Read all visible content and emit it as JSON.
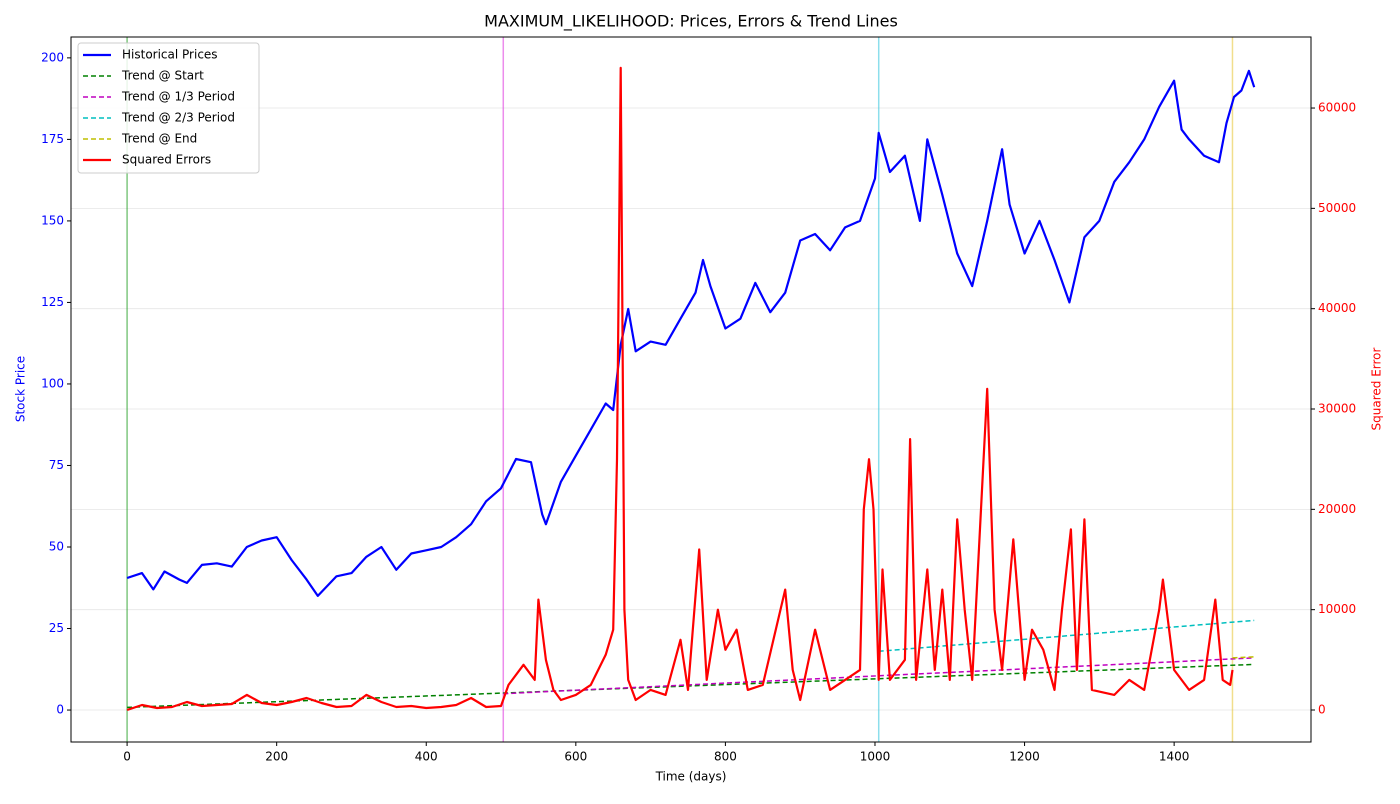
{
  "chart_data": {
    "type": "line",
    "title": "MAXIMUM_LIKELIHOOD: Prices, Errors & Trend Lines",
    "xlabel": "Time (days)",
    "ylabel": "Stock Price",
    "y2label": "Squared Error",
    "xlim": [
      -75,
      1583
    ],
    "ylim": [
      -9.8,
      206.4
    ],
    "y2lim": [
      -3190,
      67080
    ],
    "xticks": [
      0,
      200,
      400,
      600,
      800,
      1000,
      1200,
      1400
    ],
    "yticks": [
      0,
      25,
      50,
      75,
      100,
      125,
      150,
      175,
      200
    ],
    "y2ticks": [
      0,
      10000,
      20000,
      30000,
      40000,
      50000,
      60000
    ],
    "ycolor": "#0000ff",
    "y2color": "#ff0000",
    "grid": true,
    "legend": "upper-left",
    "vlines": [
      {
        "x": 0,
        "color": "#2ca02c"
      },
      {
        "x": 503,
        "color": "#e040e0"
      },
      {
        "x": 1005,
        "color": "#40c8e0"
      },
      {
        "x": 1478,
        "color": "#e8c840"
      }
    ],
    "series": [
      {
        "name": "Historical Prices",
        "color": "#0000ff",
        "dash": false,
        "width": 2.2,
        "x": [
          0,
          20,
          35,
          50,
          70,
          80,
          100,
          120,
          140,
          160,
          180,
          200,
          220,
          240,
          255,
          280,
          300,
          320,
          340,
          360,
          380,
          400,
          420,
          440,
          460,
          480,
          500,
          520,
          540,
          555,
          560,
          580,
          600,
          620,
          640,
          650,
          660,
          670,
          680,
          700,
          720,
          740,
          760,
          770,
          780,
          800,
          820,
          840,
          860,
          880,
          900,
          920,
          940,
          960,
          980,
          1000,
          1005,
          1020,
          1040,
          1060,
          1070,
          1090,
          1110,
          1130,
          1150,
          1170,
          1180,
          1200,
          1220,
          1240,
          1260,
          1280,
          1300,
          1320,
          1340,
          1360,
          1380,
          1400,
          1410,
          1420,
          1440,
          1460,
          1470,
          1480,
          1490,
          1500,
          1507
        ],
        "values": [
          40.5,
          42,
          37,
          42.5,
          40,
          39,
          44.5,
          45,
          44,
          50,
          52,
          53,
          46,
          40,
          35,
          41,
          42,
          47,
          50,
          43,
          48,
          49,
          50,
          53,
          57,
          64,
          68,
          77,
          76,
          60,
          57,
          70,
          78,
          86,
          94,
          92,
          112,
          123,
          110,
          113,
          112,
          120,
          128,
          138,
          130,
          117,
          120,
          131,
          122,
          128,
          144,
          146,
          141,
          148,
          150,
          163,
          177,
          165,
          170,
          150,
          175,
          158,
          140,
          130,
          150,
          172,
          155,
          140,
          150,
          138,
          125,
          145,
          150,
          162,
          168,
          175,
          185,
          193,
          178,
          175,
          170,
          168,
          180,
          188,
          190,
          196,
          191
        ]
      },
      {
        "name": "Trend @ Start",
        "color": "#008000",
        "dash": true,
        "width": 1.5,
        "x": [
          0,
          1507
        ],
        "values": [
          0.8,
          14
        ]
      },
      {
        "name": "Trend @ 1/3 Period",
        "color": "#bf00bf",
        "dash": true,
        "width": 1.5,
        "x": [
          503,
          1507
        ],
        "values": [
          5,
          16
        ]
      },
      {
        "name": "Trend @ 2/3 Period",
        "color": "#00bfbf",
        "dash": true,
        "width": 1.5,
        "x": [
          1005,
          1507
        ],
        "values": [
          18,
          27.5
        ]
      },
      {
        "name": "Trend @ End",
        "color": "#bfbf00",
        "dash": true,
        "width": 1.5,
        "x": [
          1478,
          1507
        ],
        "values": [
          16,
          16.3
        ]
      },
      {
        "name": "Squared Errors",
        "color": "#ff0000",
        "dash": false,
        "width": 2.2,
        "axis": "y2",
        "x": [
          0,
          20,
          40,
          60,
          80,
          100,
          120,
          140,
          160,
          180,
          200,
          220,
          240,
          260,
          280,
          300,
          320,
          340,
          360,
          380,
          400,
          420,
          440,
          460,
          480,
          500,
          510,
          530,
          545,
          550,
          560,
          570,
          580,
          600,
          620,
          640,
          650,
          655,
          660,
          665,
          670,
          680,
          700,
          720,
          740,
          750,
          765,
          775,
          790,
          800,
          815,
          830,
          850,
          880,
          890,
          900,
          920,
          940,
          960,
          980,
          985,
          992,
          998,
          1005,
          1010,
          1020,
          1040,
          1047,
          1055,
          1070,
          1080,
          1090,
          1100,
          1110,
          1120,
          1130,
          1150,
          1160,
          1170,
          1185,
          1200,
          1210,
          1225,
          1240,
          1250,
          1262,
          1270,
          1280,
          1290,
          1320,
          1340,
          1360,
          1380,
          1385,
          1400,
          1420,
          1440,
          1455,
          1465,
          1475,
          1478
        ],
        "values": [
          0,
          500,
          200,
          300,
          800,
          400,
          500,
          600,
          1500,
          700,
          500,
          800,
          1200,
          700,
          300,
          400,
          1500,
          800,
          300,
          400,
          200,
          300,
          500,
          1200,
          300,
          400,
          2500,
          4500,
          3000,
          11000,
          5000,
          2000,
          1000,
          1500,
          2500,
          5500,
          8000,
          25000,
          64000,
          10000,
          3000,
          1000,
          2000,
          1500,
          7000,
          2000,
          16000,
          3000,
          10000,
          6000,
          8000,
          2000,
          2500,
          12000,
          4000,
          1000,
          8000,
          2000,
          3000,
          4000,
          20000,
          25000,
          20000,
          3000,
          14000,
          3000,
          5000,
          27000,
          3000,
          14000,
          4000,
          12000,
          3000,
          19000,
          10000,
          3000,
          32000,
          10000,
          4000,
          17000,
          3000,
          8000,
          6000,
          2000,
          10000,
          18000,
          4000,
          19000,
          2000,
          1500,
          3000,
          2000,
          10000,
          13000,
          4000,
          2000,
          3000,
          11000,
          3000,
          2500,
          4000
        ]
      }
    ]
  }
}
